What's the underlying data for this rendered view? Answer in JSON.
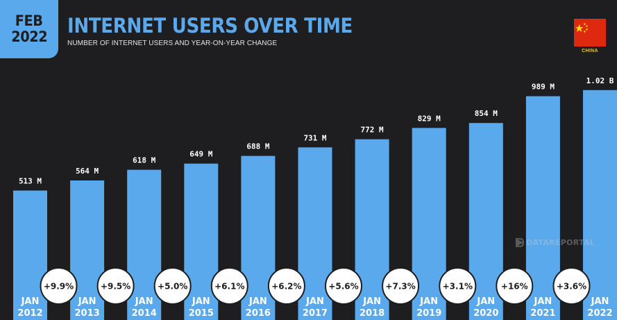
{
  "badge": {
    "month": "FEB",
    "year": "2022"
  },
  "header": {
    "title": "INTERNET USERS OVER TIME",
    "subtitle": "NUMBER OF INTERNET USERS AND YEAR-ON-YEAR CHANGE"
  },
  "country": {
    "label": "CHINA",
    "flag_icon": "china-flag-icon"
  },
  "watermark": {
    "text": "DATAREPORTAL",
    "icon": "datareportal-logo-icon"
  },
  "colors": {
    "background": "#1e1d1f",
    "bar": "#5aa9ec",
    "accent": "#5aa9ec",
    "flag_red": "#de2910",
    "flag_yellow": "#ffde00",
    "bubble": "#ffffff"
  },
  "chart_data": {
    "type": "bar",
    "categories": [
      "JAN 2012",
      "JAN 2013",
      "JAN 2014",
      "JAN 2015",
      "JAN 2016",
      "JAN 2017",
      "JAN 2018",
      "JAN 2019",
      "JAN 2020",
      "JAN 2021",
      "JAN 2022"
    ],
    "category_lines": [
      [
        "JAN",
        "2012"
      ],
      [
        "JAN",
        "2013"
      ],
      [
        "JAN",
        "2014"
      ],
      [
        "JAN",
        "2015"
      ],
      [
        "JAN",
        "2016"
      ],
      [
        "JAN",
        "2017"
      ],
      [
        "JAN",
        "2018"
      ],
      [
        "JAN",
        "2019"
      ],
      [
        "JAN",
        "2020"
      ],
      [
        "JAN",
        "2021"
      ],
      [
        "JAN",
        "2022"
      ]
    ],
    "values": [
      513,
      564,
      618,
      649,
      688,
      731,
      772,
      829,
      854,
      989,
      1020
    ],
    "value_labels": [
      "513 M",
      "564 M",
      "618 M",
      "649 M",
      "688 M",
      "731 M",
      "772 M",
      "829 M",
      "854 M",
      "989 M",
      "1.02 B"
    ],
    "unit": "millions",
    "yoy_change": [
      "+9.9%",
      "+9.5%",
      "+5.0%",
      "+6.1%",
      "+6.2%",
      "+5.6%",
      "+7.3%",
      "+3.1%",
      "+16%",
      "+3.6%"
    ],
    "title": "INTERNET USERS OVER TIME",
    "subtitle": "NUMBER OF INTERNET USERS AND YEAR-ON-YEAR CHANGE",
    "xlabel": "",
    "ylabel": "",
    "grid": false,
    "legend": "none"
  }
}
